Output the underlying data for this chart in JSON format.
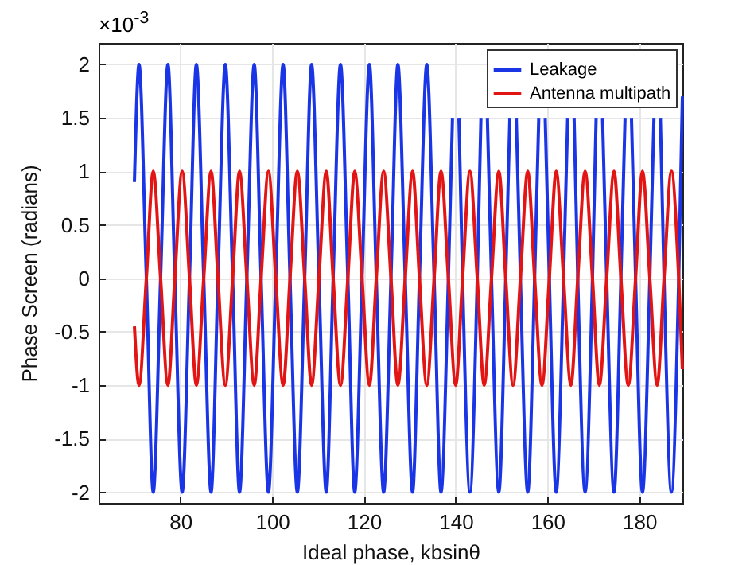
{
  "chart_data": {
    "type": "line",
    "xlabel": "Ideal phase,  kbsinθ",
    "ylabel": "Phase Screen (radians)",
    "annotations": [
      "×10$^{-3}$"
    ],
    "x": [
      70.0,
      71.0,
      72.6,
      74.1,
      75.7,
      77.3,
      78.8,
      80.4,
      82.0,
      83.5,
      85.1,
      86.7,
      88.2,
      89.8,
      91.4,
      92.9,
      94.5,
      96.1,
      97.6,
      99.2,
      100.8,
      102.4,
      103.9,
      105.5,
      107.1,
      108.6,
      110.2,
      111.8,
      113.3,
      114.9,
      116.5,
      118.0,
      119.6,
      121.2,
      122.7,
      124.3,
      125.9,
      127.4,
      129.0,
      130.6,
      132.1,
      133.7,
      135.3,
      136.8,
      138.4,
      140.0,
      141.5,
      143.1,
      144.7,
      146.2,
      147.8,
      149.4,
      150.9,
      152.5,
      154.1,
      155.7,
      157.2,
      158.8,
      160.4,
      161.9,
      163.5,
      165.1,
      166.6,
      168.2,
      169.8,
      171.3,
      172.9,
      174.5,
      176.0,
      177.6,
      179.2,
      180.7,
      182.3,
      183.9,
      185.4,
      187.0,
      188.6,
      189.4
    ],
    "series": [
      {
        "name": "Leakage",
        "color": "#1a35e6",
        "x": [
          70.0,
          71.0,
          72.6,
          74.1,
          75.7,
          77.3,
          78.8,
          80.4,
          82.0,
          83.5,
          85.1,
          86.7,
          88.2,
          89.8,
          91.4,
          92.9,
          94.5,
          96.1,
          97.6,
          99.2,
          100.8,
          102.4,
          103.9,
          105.5,
          107.1,
          108.6,
          110.2,
          111.8,
          113.3,
          114.9,
          116.5,
          118.0,
          119.6,
          121.2,
          122.7,
          124.3,
          125.9,
          127.4,
          129.0,
          130.6,
          132.1,
          133.7,
          135.3,
          136.8,
          138.4,
          139.3,
          140.0,
          140.7,
          141.5,
          143.1,
          144.7,
          145.5,
          146.2,
          146.9,
          147.8,
          149.4,
          150.9,
          151.8,
          152.5,
          153.2,
          154.1,
          155.7,
          157.2,
          158.1,
          158.8,
          159.5,
          160.4,
          161.9,
          163.5,
          164.4,
          165.1,
          165.8,
          166.6,
          168.2,
          169.8,
          170.6,
          171.3,
          172.0,
          172.9,
          174.5,
          176.0,
          176.9,
          177.6,
          178.3,
          179.2,
          180.7,
          182.3,
          183.2,
          183.9,
          184.6,
          185.4,
          187.0,
          188.6,
          189.4
        ],
        "values": [
          0.9,
          2,
          0,
          -2,
          0,
          2,
          0,
          -2,
          0,
          2,
          0,
          -2,
          0,
          2,
          0,
          -2,
          0,
          2,
          0,
          -2,
          0,
          2,
          0,
          -2,
          0,
          2,
          0,
          -2,
          0,
          2,
          0,
          -2,
          0,
          2,
          0,
          -2,
          0,
          2,
          0,
          -2,
          0,
          2,
          0,
          -2,
          0,
          1.5,
          null,
          1.5,
          0,
          -2,
          0,
          1.5,
          null,
          1.5,
          0,
          -2,
          0,
          1.5,
          null,
          1.5,
          0,
          -2,
          0,
          1.5,
          null,
          1.5,
          0,
          -2,
          0,
          1.5,
          null,
          1.5,
          0,
          -2,
          0,
          1.5,
          null,
          1.5,
          0,
          -2,
          0,
          1.5,
          null,
          1.5,
          0,
          -2,
          0,
          1.5,
          null,
          1.5,
          0,
          -2,
          0,
          1.7
        ]
      },
      {
        "name": "Antenna multipath",
        "color": "#e21414",
        "values": [
          -0.45,
          -1,
          0,
          1,
          0,
          -1,
          0,
          1,
          0,
          -1,
          0,
          1,
          0,
          -1,
          0,
          1,
          0,
          -1,
          0,
          1,
          0,
          -1,
          0,
          1,
          0,
          -1,
          0,
          1,
          0,
          -1,
          0,
          1,
          0,
          -1,
          0,
          1,
          0,
          -1,
          0,
          1,
          0,
          -1,
          0,
          1,
          0,
          -1,
          0,
          1,
          0,
          -1,
          0,
          1,
          0,
          -1,
          0,
          1,
          0,
          -1,
          0,
          1,
          0,
          -1,
          0,
          1,
          0,
          -1,
          0,
          1,
          0,
          -1,
          0,
          1,
          0,
          -1,
          0,
          1,
          0,
          -0.85
        ]
      }
    ],
    "xlim": [
      62.2,
      189.4
    ],
    "xticks": [
      80,
      100,
      120,
      140,
      160,
      180
    ],
    "ylim": [
      -2.1,
      2.2
    ],
    "yticks": [
      -2,
      -1.5,
      -1,
      -0.5,
      0,
      0.5,
      1,
      1.5,
      2
    ],
    "grid": true,
    "legend": "top right",
    "line_style": "solid",
    "marker": "none"
  }
}
